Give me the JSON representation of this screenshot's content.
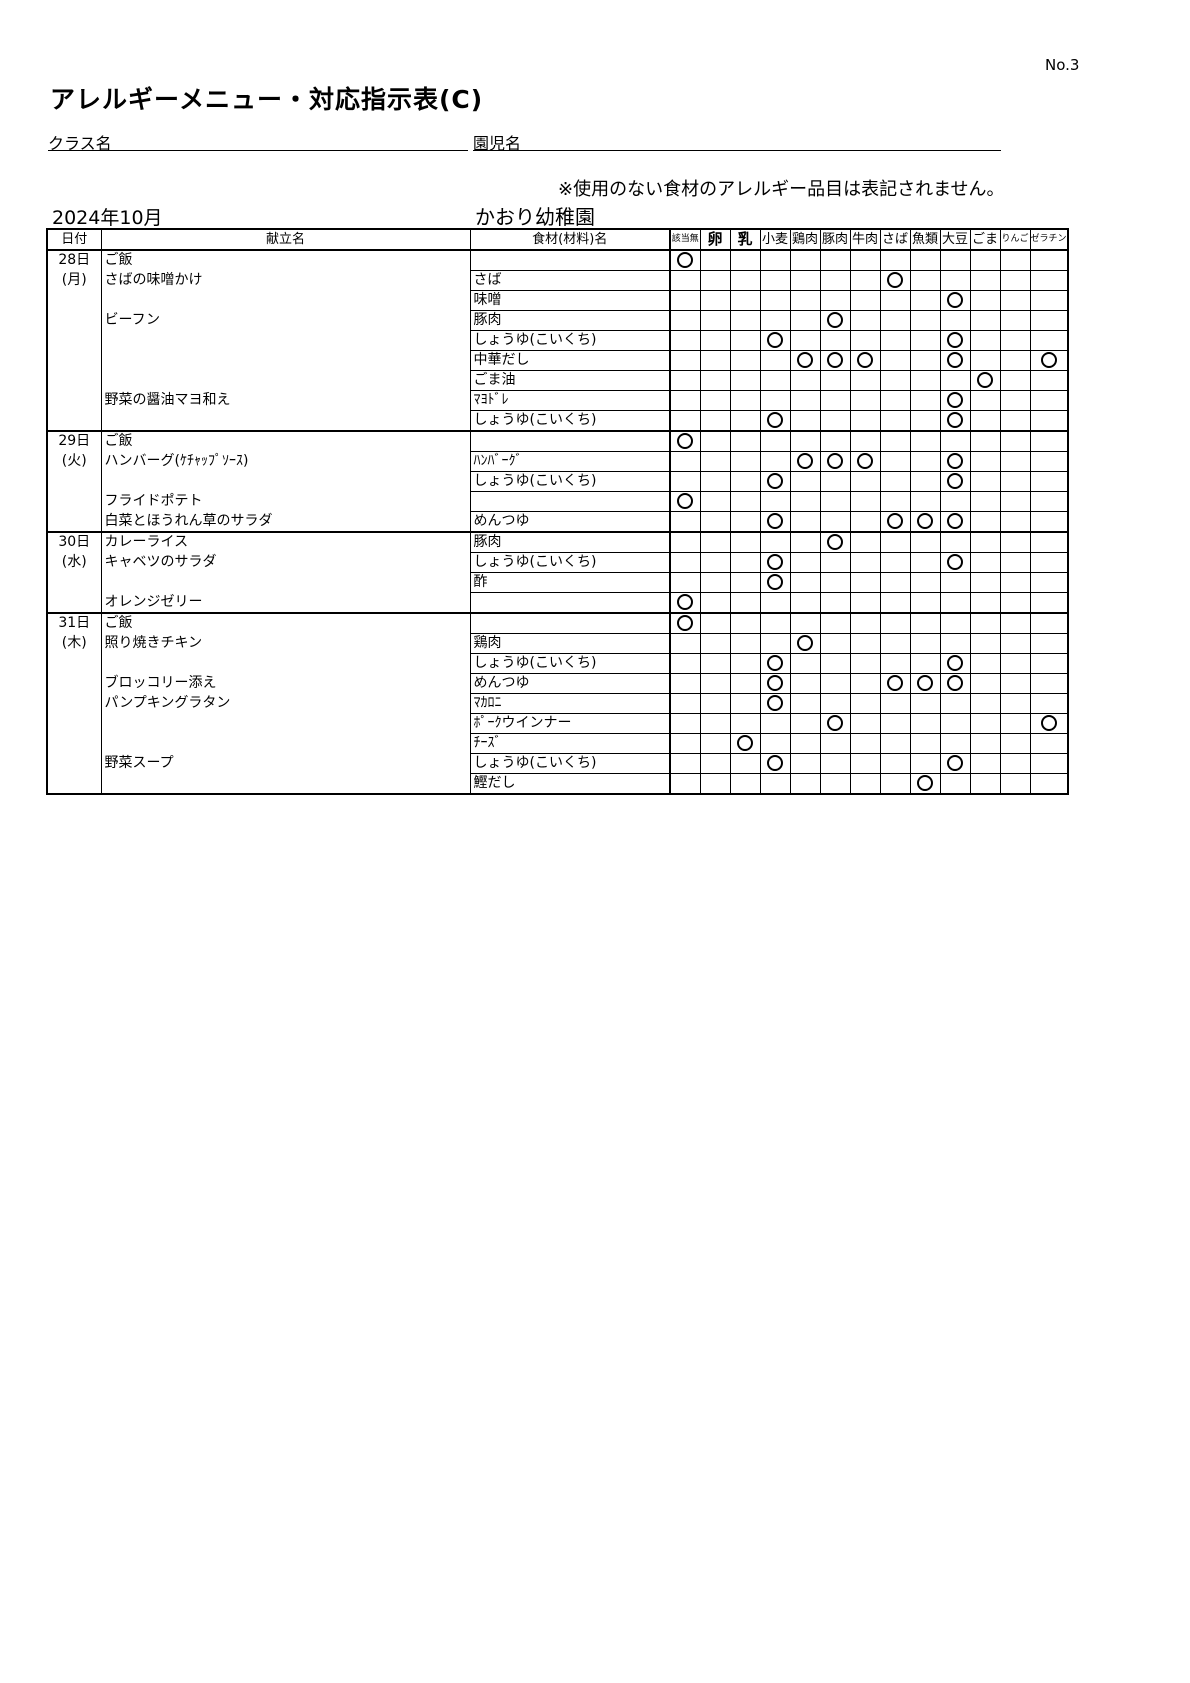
{
  "page_no": "No.3",
  "title": "アレルギーメニュー・対応指示表(C)",
  "class_label": "クラス名",
  "child_label": "園児名",
  "note": "※使用のない食材のアレルギー品目は表記されません。",
  "month": "2024年10月",
  "school": "かおり幼稚園",
  "headers": {
    "date": "日付",
    "menu": "献立名",
    "ingredient": "食材(材料)名"
  },
  "allergens": [
    "該当無",
    "卵",
    "乳",
    "小麦",
    "鶏肉",
    "豚肉",
    "牛肉",
    "さば",
    "魚類",
    "大豆",
    "ごま",
    "りんご",
    "ゼラチン"
  ],
  "mark_icon": "circle",
  "rows": [
    {
      "date": "28日",
      "dish": "ご飯",
      "ing": "",
      "marks": [
        0
      ]
    },
    {
      "date": "(月)",
      "dish": "さばの味噌かけ",
      "ing": "さば",
      "marks": [
        7
      ]
    },
    {
      "date": "",
      "dish": "",
      "ing": "味噌",
      "marks": [
        9
      ]
    },
    {
      "date": "",
      "dish": "ビーフン",
      "ing": "豚肉",
      "marks": [
        5
      ]
    },
    {
      "date": "",
      "dish": "",
      "ing": "しょうゆ(こいくち)",
      "marks": [
        3,
        9
      ]
    },
    {
      "date": "",
      "dish": "",
      "ing": "中華だし",
      "marks": [
        4,
        5,
        6,
        9,
        12
      ]
    },
    {
      "date": "",
      "dish": "",
      "ing": "ごま油",
      "marks": [
        10
      ]
    },
    {
      "date": "",
      "dish": "野菜の醤油マヨ和え",
      "ing": "ﾏﾖﾄﾞﾚ",
      "marks": [
        9
      ]
    },
    {
      "date": "",
      "dish": "",
      "ing": "しょうゆ(こいくち)",
      "marks": [
        3,
        9
      ]
    },
    {
      "date": "29日",
      "dish": "ご飯",
      "ing": "",
      "marks": [
        0
      ]
    },
    {
      "date": "(火)",
      "dish": "ハンバーグ(ｹﾁｬｯﾌﾟｿｰｽ)",
      "ing": "ﾊﾝﾊﾞｰｸﾞ",
      "marks": [
        4,
        5,
        6,
        9
      ]
    },
    {
      "date": "",
      "dish": "",
      "ing": "しょうゆ(こいくち)",
      "marks": [
        3,
        9
      ]
    },
    {
      "date": "",
      "dish": "フライドポテト",
      "ing": "",
      "marks": [
        0
      ]
    },
    {
      "date": "",
      "dish": "白菜とほうれん草のサラダ",
      "ing": "めんつゆ",
      "marks": [
        3,
        7,
        8,
        9
      ]
    },
    {
      "date": "30日",
      "dish": "カレーライス",
      "ing": "豚肉",
      "marks": [
        5
      ]
    },
    {
      "date": "(水)",
      "dish": "キャベツのサラダ",
      "ing": "しょうゆ(こいくち)",
      "marks": [
        3,
        9
      ]
    },
    {
      "date": "",
      "dish": "",
      "ing": "酢",
      "marks": [
        3
      ]
    },
    {
      "date": "",
      "dish": "オレンジゼリー",
      "ing": "",
      "marks": [
        0
      ]
    },
    {
      "date": "31日",
      "dish": "ご飯",
      "ing": "",
      "marks": [
        0
      ]
    },
    {
      "date": "(木)",
      "dish": "照り焼きチキン",
      "ing": "鶏肉",
      "marks": [
        4
      ]
    },
    {
      "date": "",
      "dish": "",
      "ing": "しょうゆ(こいくち)",
      "marks": [
        3,
        9
      ]
    },
    {
      "date": "",
      "dish": "ブロッコリー添え",
      "ing": "めんつゆ",
      "marks": [
        3,
        7,
        8,
        9
      ]
    },
    {
      "date": "",
      "dish": "パンプキングラタン",
      "ing": "ﾏｶﾛﾆ",
      "marks": [
        3
      ]
    },
    {
      "date": "",
      "dish": "",
      "ing": "ﾎﾟｰｸウインナー",
      "marks": [
        5,
        12
      ]
    },
    {
      "date": "",
      "dish": "",
      "ing": "ﾁｰｽﾞ",
      "marks": [
        2
      ]
    },
    {
      "date": "",
      "dish": "野菜スープ",
      "ing": "しょうゆ(こいくち)",
      "marks": [
        3,
        9
      ]
    },
    {
      "date": "",
      "dish": "",
      "ing": "鰹だし",
      "marks": [
        8
      ]
    }
  ]
}
